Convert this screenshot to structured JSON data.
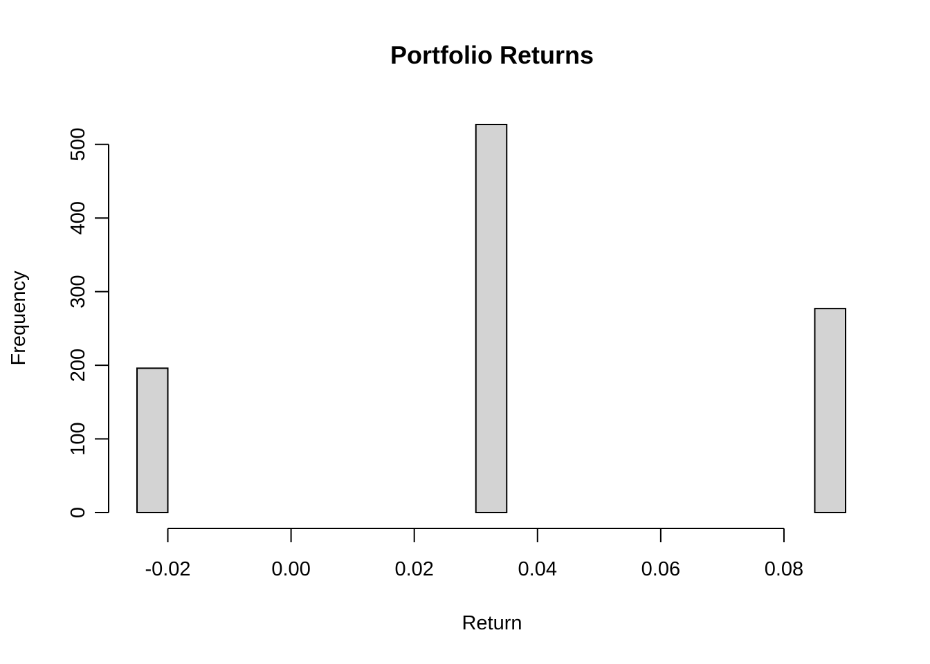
{
  "chart_data": {
    "type": "bar",
    "title": "Portfolio Returns",
    "xlabel": "Return",
    "ylabel": "Frequency",
    "bar_color": "#d3d3d3",
    "edge_color": "#000000",
    "bins": [
      {
        "x0": -0.025,
        "x1": -0.02,
        "count": 196
      },
      {
        "x0": -0.02,
        "x1": -0.015,
        "count": 0
      },
      {
        "x0": -0.015,
        "x1": -0.01,
        "count": 0
      },
      {
        "x0": -0.01,
        "x1": -0.005,
        "count": 0
      },
      {
        "x0": -0.005,
        "x1": 0.0,
        "count": 0
      },
      {
        "x0": 0.0,
        "x1": 0.005,
        "count": 0
      },
      {
        "x0": 0.005,
        "x1": 0.01,
        "count": 0
      },
      {
        "x0": 0.01,
        "x1": 0.015,
        "count": 0
      },
      {
        "x0": 0.015,
        "x1": 0.02,
        "count": 0
      },
      {
        "x0": 0.02,
        "x1": 0.025,
        "count": 0
      },
      {
        "x0": 0.025,
        "x1": 0.03,
        "count": 0
      },
      {
        "x0": 0.03,
        "x1": 0.035,
        "count": 527
      },
      {
        "x0": 0.035,
        "x1": 0.04,
        "count": 0
      },
      {
        "x0": 0.04,
        "x1": 0.045,
        "count": 0
      },
      {
        "x0": 0.045,
        "x1": 0.05,
        "count": 0
      },
      {
        "x0": 0.05,
        "x1": 0.055,
        "count": 0
      },
      {
        "x0": 0.055,
        "x1": 0.06,
        "count": 0
      },
      {
        "x0": 0.06,
        "x1": 0.065,
        "count": 0
      },
      {
        "x0": 0.065,
        "x1": 0.07,
        "count": 0
      },
      {
        "x0": 0.07,
        "x1": 0.075,
        "count": 0
      },
      {
        "x0": 0.075,
        "x1": 0.08,
        "count": 0
      },
      {
        "x0": 0.08,
        "x1": 0.085,
        "count": 0
      },
      {
        "x0": 0.085,
        "x1": 0.09,
        "count": 277
      }
    ],
    "x_ticks": [
      {
        "value": -0.02,
        "label": "-0.02"
      },
      {
        "value": 0.0,
        "label": "0.00"
      },
      {
        "value": 0.02,
        "label": "0.02"
      },
      {
        "value": 0.04,
        "label": "0.04"
      },
      {
        "value": 0.06,
        "label": "0.06"
      },
      {
        "value": 0.08,
        "label": "0.08"
      }
    ],
    "y_ticks": [
      {
        "value": 0,
        "label": "0"
      },
      {
        "value": 100,
        "label": "100"
      },
      {
        "value": 200,
        "label": "200"
      },
      {
        "value": 300,
        "label": "300"
      },
      {
        "value": 400,
        "label": "400"
      },
      {
        "value": 500,
        "label": "500"
      }
    ],
    "xlim": [
      -0.025,
      0.09
    ],
    "ylim": [
      0,
      527
    ],
    "grid": false,
    "legend": "none"
  }
}
